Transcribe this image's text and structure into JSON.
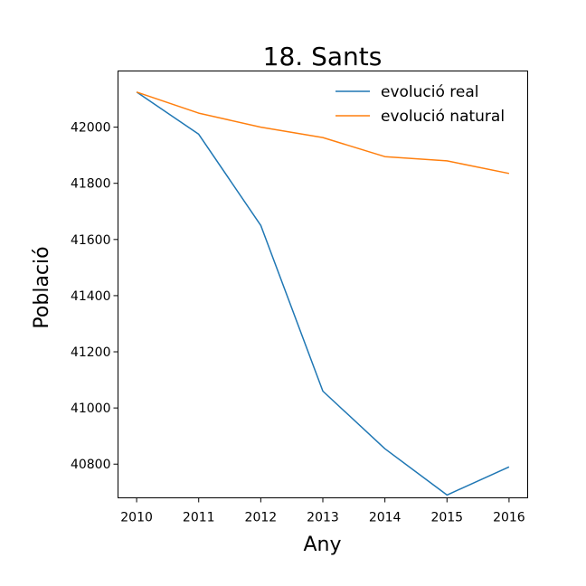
{
  "chart_data": {
    "type": "line",
    "title": "18. Sants",
    "xlabel": "Any",
    "ylabel": "Població",
    "x": [
      2010,
      2011,
      2012,
      2013,
      2014,
      2015,
      2016
    ],
    "x_tick_labels": [
      "2010",
      "2011",
      "2012",
      "2013",
      "2014",
      "2015",
      "2016"
    ],
    "y_tick_labels": [
      "40800",
      "41000",
      "41200",
      "41400",
      "41600",
      "41800",
      "42000"
    ],
    "y_ticks": [
      40800,
      41000,
      41200,
      41400,
      41600,
      41800,
      42000
    ],
    "xlim": [
      2009.7,
      2016.3
    ],
    "ylim": [
      40680,
      42200
    ],
    "grid": false,
    "legend_position": "top-right",
    "series": [
      {
        "name": "evolució real",
        "color": "#1f77b4",
        "values": [
          42125,
          41975,
          41650,
          41060,
          40855,
          40690,
          40790
        ]
      },
      {
        "name": "evolució natural",
        "color": "#ff7f0e",
        "values": [
          42125,
          42050,
          42000,
          41963,
          41895,
          41880,
          41835
        ]
      }
    ]
  }
}
